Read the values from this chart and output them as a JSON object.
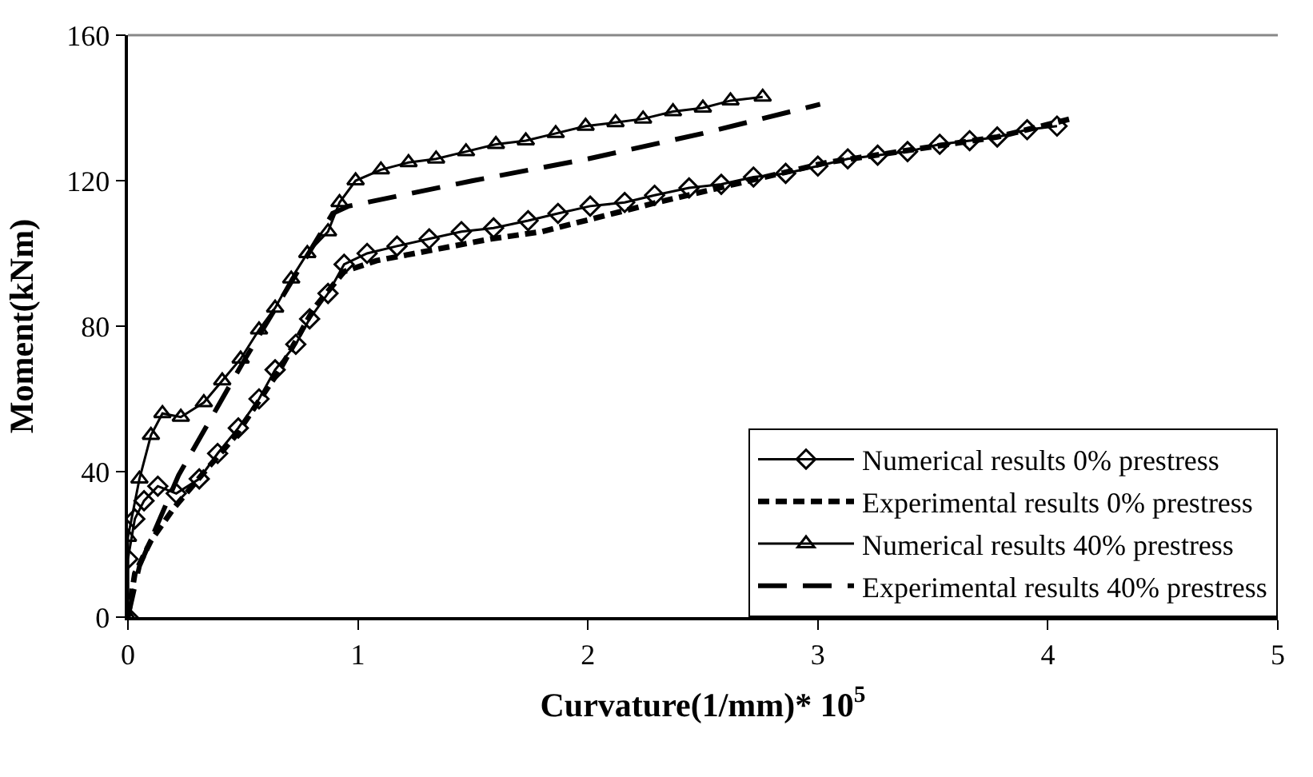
{
  "chart_data": {
    "type": "line",
    "xlabel": "Curvature(1/mm)* 10$^{5}$",
    "ylabel": "Moment(kNm)",
    "xlim": [
      0,
      5
    ],
    "xticks": [
      0,
      1,
      2,
      3,
      4,
      5
    ],
    "ylim": [
      0,
      160
    ],
    "yticks": [
      0,
      40,
      80,
      120,
      160
    ],
    "legend": "bottom right",
    "series": [
      {
        "name": "Numerical results 0% prestress",
        "color": "#000000",
        "marker": "diamond",
        "line_style": "solid",
        "x": [
          0,
          0,
          0.03,
          0.07,
          0.13,
          0.21,
          0.31,
          0.39,
          0.48,
          0.57,
          0.64,
          0.73,
          0.79,
          0.87,
          0.94,
          1.04,
          1.17,
          1.31,
          1.45,
          1.59,
          1.74,
          1.87,
          2.01,
          2.16,
          2.29,
          2.44,
          2.58,
          2.72,
          2.86,
          3.0,
          3.13,
          3.26,
          3.39,
          3.53,
          3.66,
          3.78,
          3.91,
          4.04
        ],
        "values": [
          0,
          16,
          27,
          32,
          36,
          34,
          38,
          45,
          52,
          60,
          68,
          75,
          82,
          89,
          97,
          100,
          102,
          104,
          106,
          107,
          109,
          111,
          113,
          114,
          116,
          118,
          119,
          121,
          122,
          124,
          126,
          127,
          128,
          130,
          131,
          132,
          134,
          135
        ]
      },
      {
        "name": "Experimental results 0% prestress",
        "color": "#000000",
        "marker": "none",
        "line_style": "dotted",
        "x": [
          0,
          0.03,
          0.1,
          0.2,
          0.32,
          0.47,
          0.66,
          0.81,
          0.94,
          1.08,
          1.33,
          1.58,
          1.8,
          2.3,
          3.04,
          3.78,
          4.1
        ],
        "values": [
          0,
          12,
          21,
          30,
          39,
          50,
          68,
          85,
          95,
          98,
          101,
          104,
          106,
          114,
          125,
          132,
          137
        ]
      },
      {
        "name": "Numerical results 40% prestress",
        "color": "#000000",
        "marker": "triangle",
        "line_style": "solid",
        "x": [
          0,
          0,
          0.05,
          0.1,
          0.15,
          0.23,
          0.33,
          0.41,
          0.49,
          0.57,
          0.64,
          0.71,
          0.78,
          0.87,
          0.92,
          0.99,
          1.1,
          1.22,
          1.34,
          1.47,
          1.6,
          1.73,
          1.86,
          1.99,
          2.12,
          2.24,
          2.37,
          2.5,
          2.62,
          2.76
        ],
        "values": [
          0,
          22,
          38,
          50,
          56,
          55,
          59,
          65,
          71,
          79,
          85,
          93,
          100,
          106,
          114,
          120,
          123,
          125,
          126,
          128,
          130,
          131,
          133,
          135,
          136,
          137,
          139,
          140,
          142,
          143
        ]
      },
      {
        "name": "Experimental results 40% prestress",
        "color": "#000000",
        "marker": "none",
        "line_style": "dashed",
        "x": [
          0,
          0.05,
          0.22,
          0.5,
          0.89,
          0.96,
          1.5,
          2.0,
          2.5,
          3.01
        ],
        "values": [
          0,
          14,
          39,
          70,
          111,
          113,
          120,
          126,
          133,
          141
        ]
      }
    ]
  }
}
